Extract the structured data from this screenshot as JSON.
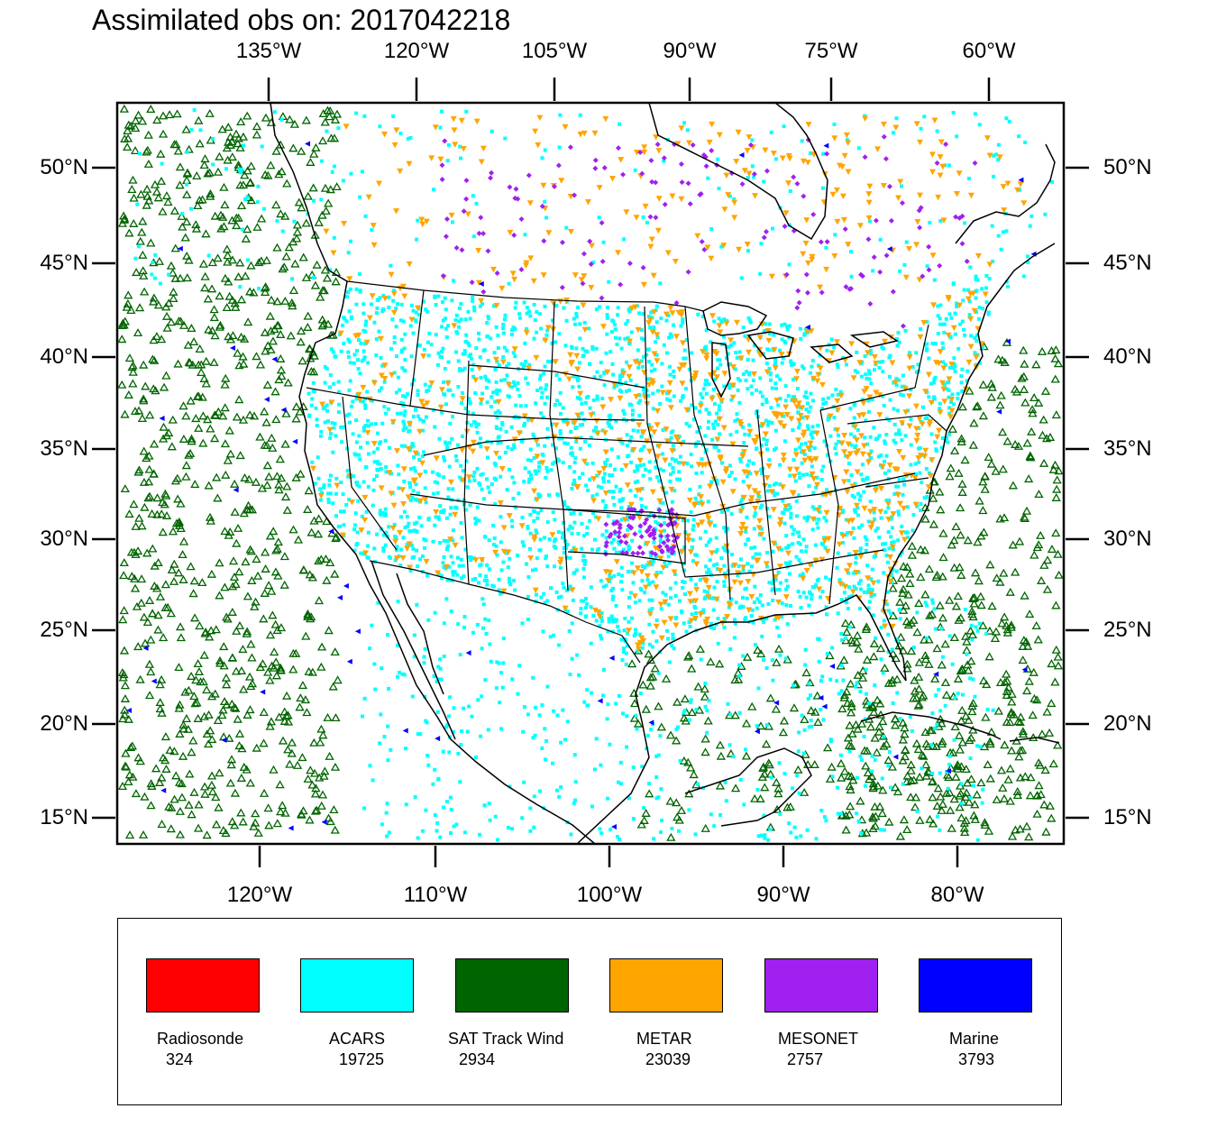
{
  "title": "Assimilated obs on: 2017042218",
  "top_axis_labels": [
    "135°W",
    "120°W",
    "105°W",
    "90°W",
    "75°W",
    "60°W"
  ],
  "bottom_axis_labels": [
    "120°W",
    "110°W",
    "100°W",
    "90°W",
    "80°W"
  ],
  "lat_labels": [
    "50°N",
    "45°N",
    "40°N",
    "35°N",
    "30°N",
    "25°N",
    "20°N",
    "15°N"
  ],
  "legend": [
    {
      "name": "Radiosonde",
      "count": "324",
      "color": "#ff0000",
      "icon": "filled-square"
    },
    {
      "name": "ACARS",
      "count": "19725",
      "color": "#00ffff",
      "icon": "filled-square"
    },
    {
      "name": "SAT Track Wind",
      "count": "2934",
      "color": "#006400",
      "icon": "open-triangle"
    },
    {
      "name": "METAR",
      "count": "23039",
      "color": "#ffa500",
      "icon": "down-triangle"
    },
    {
      "name": "MESONET",
      "count": "2757",
      "color": "#a020f0",
      "icon": "diamond"
    },
    {
      "name": "Marine",
      "count": "3793",
      "color": "#0000ff",
      "icon": "left-triangle"
    }
  ]
}
